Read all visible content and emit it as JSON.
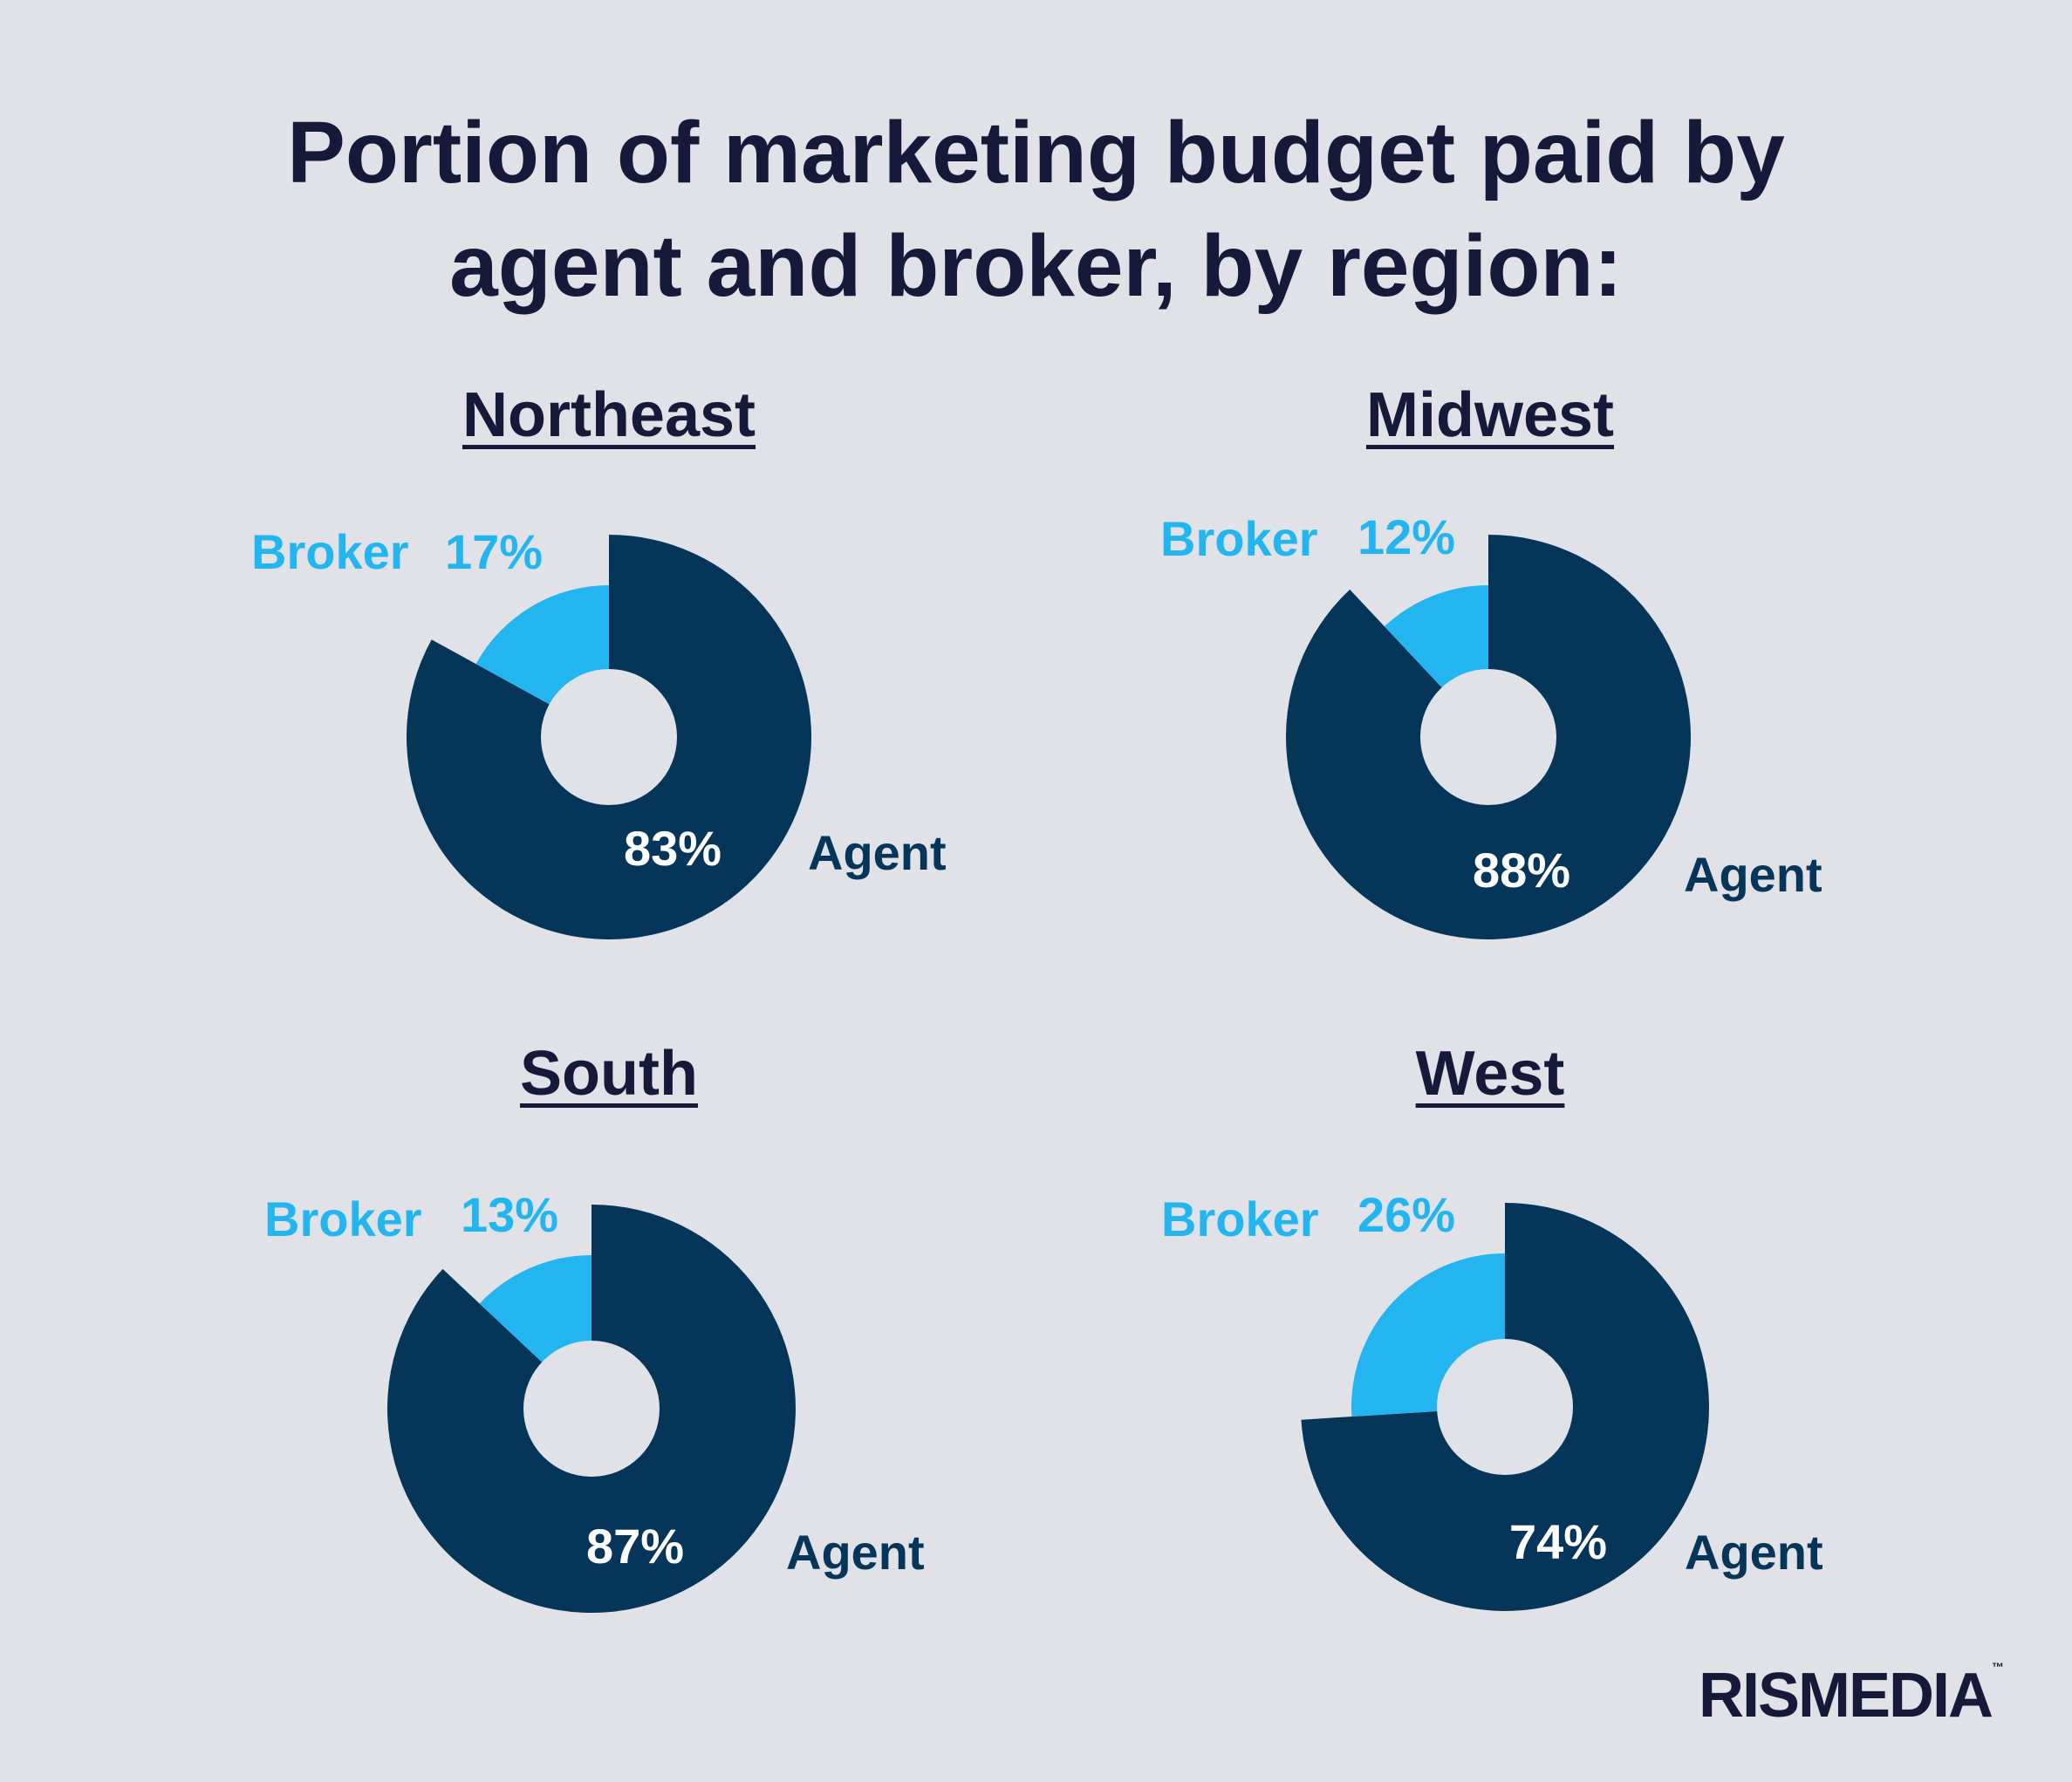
{
  "title": {
    "line1": "Portion of marketing budget paid by",
    "line2": "agent and broker, by region:"
  },
  "colors": {
    "agent": "#05365a",
    "broker": "#23b5f0",
    "hole": "#e1e2e7"
  },
  "chart_data": [
    {
      "type": "pie",
      "title": "Northeast",
      "labels": [
        "Agent",
        "Broker"
      ],
      "values": [
        83,
        17
      ],
      "value_labels": [
        "83%",
        "17%"
      ]
    },
    {
      "type": "pie",
      "title": "Midwest",
      "labels": [
        "Agent",
        "Broker"
      ],
      "values": [
        88,
        12
      ],
      "value_labels": [
        "88%",
        "12%"
      ]
    },
    {
      "type": "pie",
      "title": "South",
      "labels": [
        "Agent",
        "Broker"
      ],
      "values": [
        87,
        13
      ],
      "value_labels": [
        "87%",
        "13%"
      ]
    },
    {
      "type": "pie",
      "title": "West",
      "labels": [
        "Agent",
        "Broker"
      ],
      "values": [
        74,
        26
      ],
      "value_labels": [
        "74%",
        "26%"
      ]
    }
  ],
  "logo": {
    "text": "RISMEDIA",
    "tm": "™"
  }
}
